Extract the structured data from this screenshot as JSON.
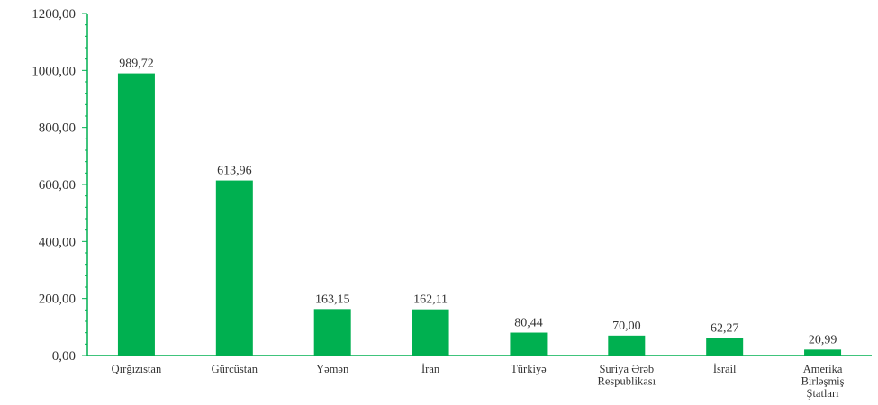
{
  "chart_data": {
    "type": "bar",
    "title": "",
    "xlabel": "",
    "ylabel": "",
    "categories": [
      [
        "Qırğızıstan"
      ],
      [
        "Gürcüstan"
      ],
      [
        "Yəmən"
      ],
      [
        "İran"
      ],
      [
        "Türkiyə"
      ],
      [
        "Suriya Ərəb",
        "Respublikası"
      ],
      [
        "İsrail"
      ],
      [
        "Amerika",
        "Birləşmiş",
        "Ştatları"
      ]
    ],
    "values": [
      989.72,
      613.96,
      163.15,
      162.11,
      80.44,
      70.0,
      62.27,
      20.99
    ],
    "value_labels": [
      "989,72",
      "613,96",
      "163,15",
      "162,11",
      "80,44",
      "70,00",
      "62,27",
      "20,99"
    ],
    "ylim": [
      0,
      1200
    ],
    "y_ticks": [
      0,
      200,
      400,
      600,
      800,
      1000,
      1200
    ],
    "y_tick_labels": [
      "0,00",
      "200,00",
      "400,00",
      "600,00",
      "800,00",
      "1000,00",
      "1200,00"
    ],
    "grid": false,
    "legend": "none",
    "colors": {
      "bar": "#00b050",
      "axis": "#00b050",
      "text": "#333333"
    }
  }
}
